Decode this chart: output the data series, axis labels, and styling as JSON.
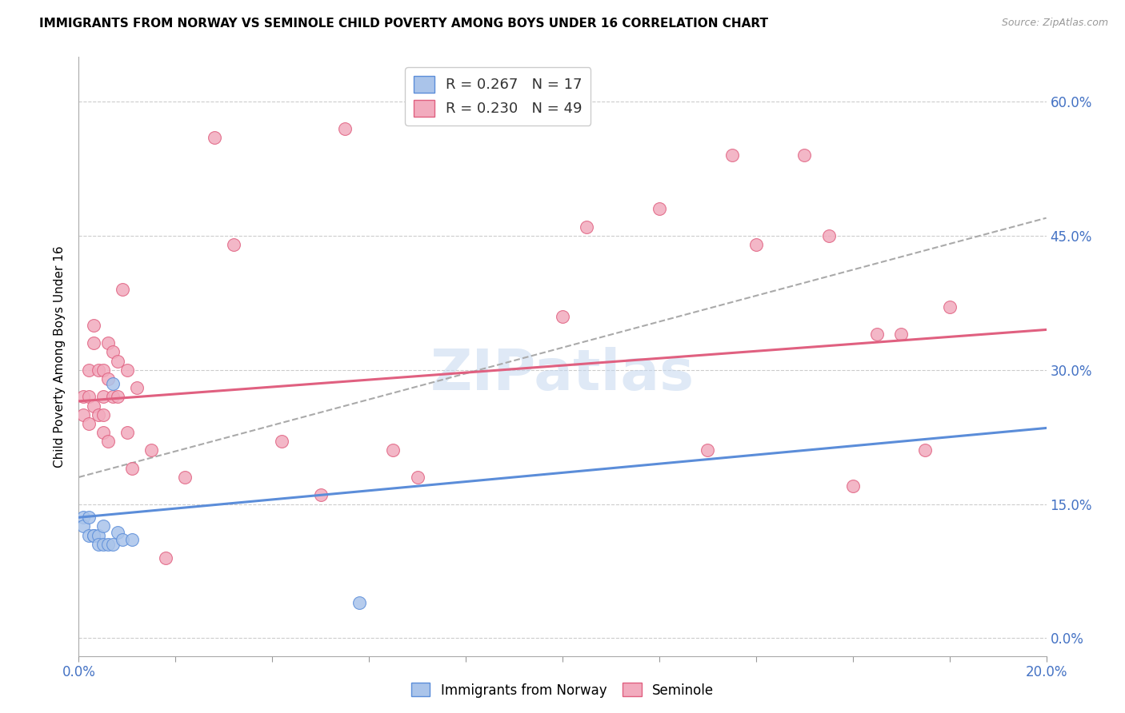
{
  "title": "IMMIGRANTS FROM NORWAY VS SEMINOLE CHILD POVERTY AMONG BOYS UNDER 16 CORRELATION CHART",
  "source": "Source: ZipAtlas.com",
  "ylabel": "Child Poverty Among Boys Under 16",
  "xlim": [
    0.0,
    0.2
  ],
  "ylim": [
    -0.02,
    0.65
  ],
  "ytick_positions": [
    0.0,
    0.15,
    0.3,
    0.45,
    0.6
  ],
  "ytick_labels": [
    "0.0%",
    "15.0%",
    "30.0%",
    "45.0%",
    "60.0%"
  ],
  "xtick_positions": [
    0.0,
    0.02,
    0.04,
    0.06,
    0.08,
    0.1,
    0.12,
    0.14,
    0.16,
    0.18,
    0.2
  ],
  "color_norway": "#aac4ea",
  "color_seminole": "#f2abbe",
  "color_norway_edge": "#5b8dd9",
  "color_seminole_edge": "#e06080",
  "color_norway_line": "#5b8dd9",
  "color_seminole_line": "#e06080",
  "color_dashed": "#aaaaaa",
  "norway_x": [
    0.001,
    0.001,
    0.002,
    0.002,
    0.003,
    0.003,
    0.004,
    0.004,
    0.005,
    0.005,
    0.006,
    0.007,
    0.007,
    0.008,
    0.009,
    0.011,
    0.058
  ],
  "norway_y": [
    0.135,
    0.125,
    0.135,
    0.115,
    0.115,
    0.115,
    0.115,
    0.105,
    0.125,
    0.105,
    0.105,
    0.105,
    0.285,
    0.118,
    0.11,
    0.11,
    0.04
  ],
  "seminole_x": [
    0.001,
    0.001,
    0.002,
    0.002,
    0.002,
    0.003,
    0.003,
    0.003,
    0.004,
    0.004,
    0.005,
    0.005,
    0.005,
    0.005,
    0.006,
    0.006,
    0.006,
    0.007,
    0.007,
    0.008,
    0.008,
    0.009,
    0.01,
    0.01,
    0.011,
    0.012,
    0.015,
    0.018,
    0.022,
    0.028,
    0.032,
    0.042,
    0.05,
    0.055,
    0.065,
    0.07,
    0.1,
    0.105,
    0.12,
    0.13,
    0.135,
    0.14,
    0.15,
    0.155,
    0.16,
    0.165,
    0.17,
    0.175,
    0.18
  ],
  "seminole_y": [
    0.27,
    0.25,
    0.3,
    0.27,
    0.24,
    0.35,
    0.33,
    0.26,
    0.3,
    0.25,
    0.3,
    0.27,
    0.25,
    0.23,
    0.33,
    0.29,
    0.22,
    0.32,
    0.27,
    0.31,
    0.27,
    0.39,
    0.3,
    0.23,
    0.19,
    0.28,
    0.21,
    0.09,
    0.18,
    0.56,
    0.44,
    0.22,
    0.16,
    0.57,
    0.21,
    0.18,
    0.36,
    0.46,
    0.48,
    0.21,
    0.54,
    0.44,
    0.54,
    0.45,
    0.17,
    0.34,
    0.34,
    0.21,
    0.37
  ],
  "norway_line_x": [
    0.0,
    0.2
  ],
  "norway_line_y": [
    0.135,
    0.235
  ],
  "seminole_line_x": [
    0.0,
    0.2
  ],
  "seminole_line_y": [
    0.265,
    0.345
  ],
  "dashed_line_x": [
    0.0,
    0.2
  ],
  "dashed_line_y": [
    0.18,
    0.47
  ],
  "watermark": "ZIPatlas",
  "watermark_color": "#c5d8f0",
  "legend1_label": "R = 0.267   N = 17",
  "legend2_label": "R = 0.230   N = 49",
  "bottom_legend1": "Immigrants from Norway",
  "bottom_legend2": "Seminole"
}
